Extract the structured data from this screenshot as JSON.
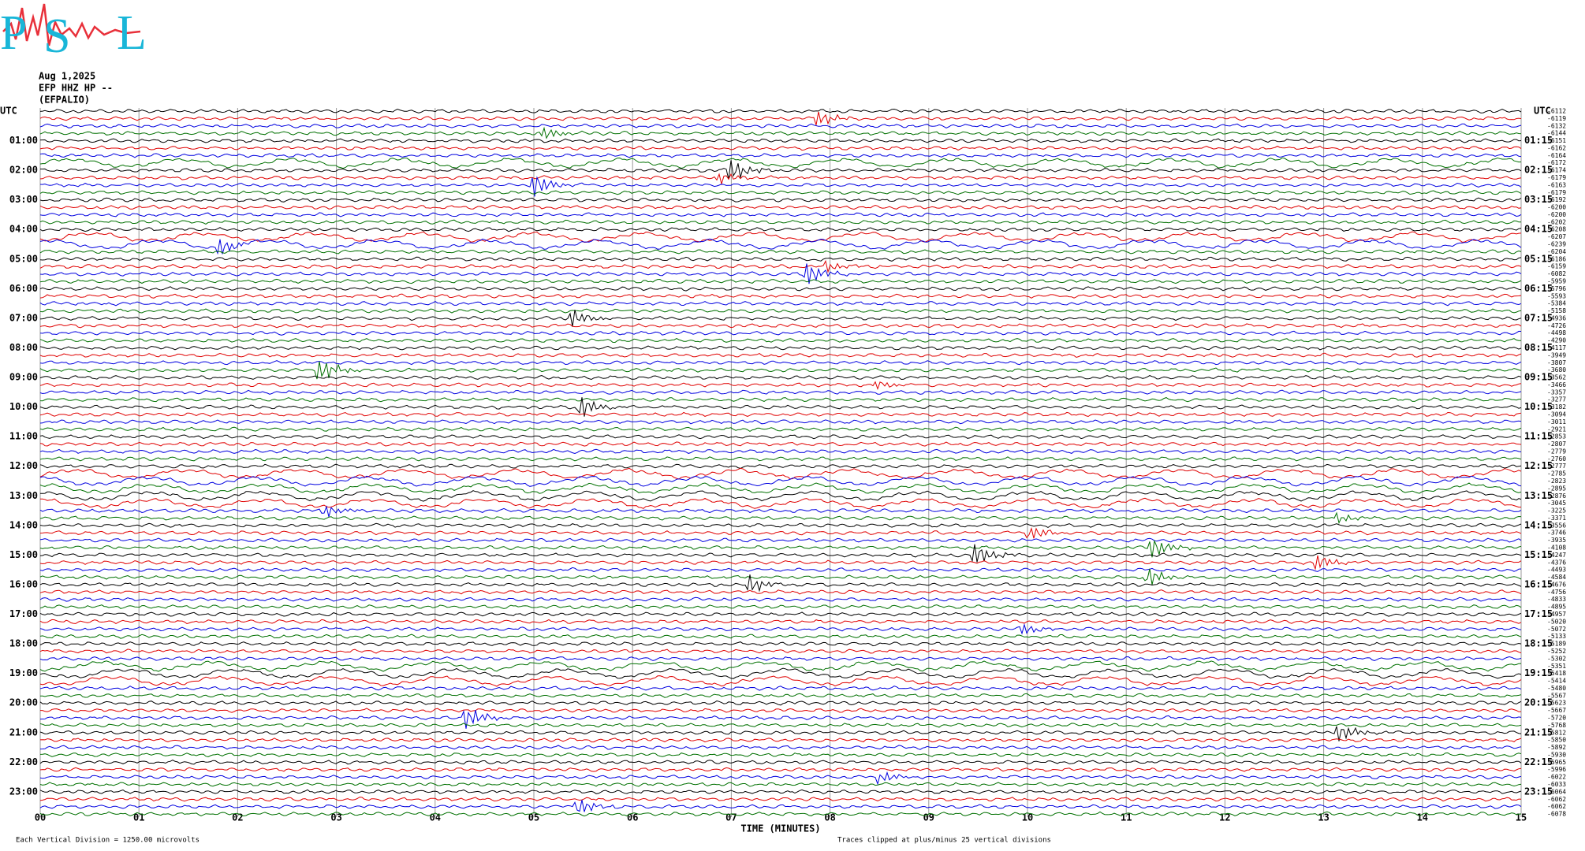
{
  "logo": {
    "letters": [
      "P",
      "S",
      "L"
    ]
  },
  "header": {
    "date": "Aug 1,2025",
    "channel": "EFP HHZ HP --",
    "station": "(EFPALIO)"
  },
  "left_axis": {
    "title": "UTC",
    "labels": [
      "01:00",
      "02:00",
      "03:00",
      "04:00",
      "05:00",
      "06:00",
      "07:00",
      "08:00",
      "09:00",
      "10:00",
      "11:00",
      "12:00",
      "13:00",
      "14:00",
      "15:00",
      "16:00",
      "17:00",
      "18:00",
      "19:00",
      "20:00",
      "21:00",
      "22:00",
      "23:00"
    ]
  },
  "right_axis": {
    "title": "UTC",
    "labels": [
      "01:15",
      "02:15",
      "03:15",
      "04:15",
      "05:15",
      "06:15",
      "07:15",
      "08:15",
      "09:15",
      "10:15",
      "11:15",
      "12:15",
      "13:15",
      "14:15",
      "15:15",
      "16:15",
      "17:15",
      "18:15",
      "19:15",
      "20:15",
      "21:15",
      "22:15",
      "23:15"
    ],
    "offsets": [
      -6112,
      -6119,
      -6132,
      -6144,
      -6151,
      -6162,
      -6164,
      -6172,
      -6174,
      -6179,
      -6163,
      -6179,
      -6192,
      -6200,
      -6200,
      -6202,
      -6208,
      -6207,
      -6239,
      -6204,
      -6186,
      -6159,
      -6082,
      -5959,
      -5796,
      -5593,
      -5384,
      -5158,
      -4936,
      -4726,
      -4498,
      -4290,
      -4117,
      -3949,
      -3807,
      -3680,
      -3562,
      -3466,
      -3357,
      -3277,
      -3182,
      -3094,
      -3011,
      -2921,
      -2853,
      -2807,
      -2779,
      -2760,
      -2777,
      -2785,
      -2823,
      -2895,
      -2876,
      -3045,
      -3225,
      -3371,
      -3556,
      -3746,
      -3935,
      -4108,
      -4247,
      -4376,
      -4493,
      -4584,
      -4676,
      -4756,
      -4833,
      -4895,
      -4957,
      -5020,
      -5072,
      -5133,
      -5189,
      -5252,
      -5302,
      -5351,
      -5418,
      -5414,
      -5480,
      -5567,
      -5623,
      -5667,
      -5720,
      -5768,
      -5812,
      -5850,
      -5892,
      -5930,
      -5965,
      -5996,
      -6022,
      -6033,
      -6064,
      -6062,
      -6062,
      -6078
    ]
  },
  "x_axis": {
    "title": "TIME (MINUTES)",
    "ticks": [
      "00",
      "01",
      "02",
      "03",
      "04",
      "05",
      "06",
      "07",
      "08",
      "09",
      "10",
      "11",
      "12",
      "13",
      "14",
      "15"
    ]
  },
  "footer": {
    "scale": "Each Vertical Division = 1250.00 microvolts",
    "clip": "Traces clipped at plus/minus 25 vertical divisions"
  }
}
